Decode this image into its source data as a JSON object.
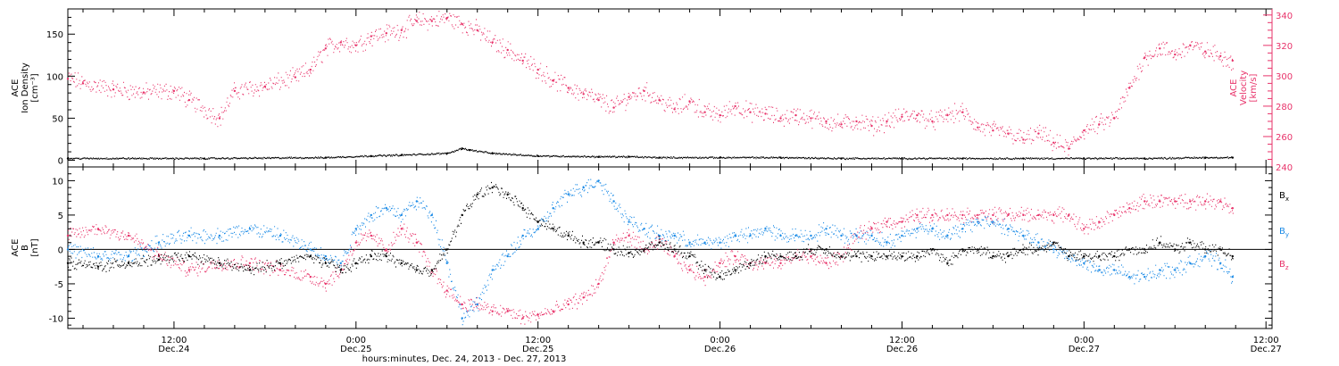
{
  "colors": {
    "axis": "#000000",
    "black": "#000000",
    "red": "#e8336a",
    "blue": "#1a8ae6"
  },
  "xaxis": {
    "title": "hours:minutes, Dec. 24, 2013 - Dec. 27, 2013",
    "range_hours": [
      5,
      84.4
    ],
    "ticks": [
      {
        "h": 12,
        "time": "12:00",
        "date": "Dec.24"
      },
      {
        "h": 24,
        "time": "0:00",
        "date": "Dec.25"
      },
      {
        "h": 36,
        "time": "12:00",
        "date": "Dec.25"
      },
      {
        "h": 48,
        "time": "0:00",
        "date": "Dec.26"
      },
      {
        "h": 60,
        "time": "12:00",
        "date": "Dec.26"
      },
      {
        "h": 72,
        "time": "0:00",
        "date": "Dec.27"
      },
      {
        "h": 84,
        "time": "12:00",
        "date": "Dec.27"
      }
    ]
  },
  "chart_data": [
    {
      "type": "scatter",
      "panel": "top",
      "ylabel": [
        "ACE",
        "Ion Density",
        "[cm⁻³]"
      ],
      "ylabel_right": [
        "ACE",
        "Velocity",
        "[km/s]"
      ],
      "ylim": [
        -8,
        180
      ],
      "yticks": [
        0,
        50,
        100,
        150
      ],
      "ylim_right": [
        240,
        344
      ],
      "yticks_right": [
        240,
        260,
        280,
        300,
        320,
        340
      ],
      "series": [
        {
          "axis": "left",
          "color": "black",
          "x": [
            5,
            14,
            22,
            25,
            27,
            30,
            31,
            31.5,
            33,
            36,
            40,
            42,
            44,
            48,
            52,
            56,
            60,
            64,
            68,
            72,
            76,
            80,
            81.8
          ],
          "y": [
            2,
            2,
            3,
            5,
            6,
            8,
            14,
            12,
            8,
            5,
            4,
            4,
            3,
            3,
            3,
            2,
            2,
            2,
            2,
            2,
            2,
            3,
            3
          ]
        },
        {
          "axis": "right",
          "color": "red",
          "x": [
            5,
            6,
            8,
            10,
            12,
            13,
            15,
            16,
            18,
            20,
            21,
            22,
            23,
            24,
            25,
            26,
            27,
            28,
            29,
            30,
            31,
            32,
            33,
            34,
            35,
            36,
            37,
            38,
            39,
            40,
            41,
            42,
            43,
            44,
            45,
            46,
            47,
            48,
            49,
            50,
            51,
            52,
            53,
            54,
            55,
            56,
            57,
            58,
            59,
            60,
            61,
            62,
            63,
            64,
            65,
            66,
            67,
            68,
            69,
            70,
            71,
            72,
            73,
            74,
            75,
            76,
            77,
            78,
            79,
            80,
            81,
            81.8
          ],
          "y": [
            298,
            295,
            291,
            289,
            290,
            284,
            272,
            290,
            293,
            299,
            304,
            318,
            322,
            320,
            326,
            328,
            330,
            336,
            336,
            338,
            334,
            330,
            322,
            317,
            310,
            304,
            297,
            292,
            288,
            284,
            279,
            286,
            290,
            284,
            278,
            283,
            276,
            274,
            280,
            276,
            275,
            272,
            274,
            272,
            270,
            268,
            270,
            267,
            270,
            273,
            274,
            270,
            274,
            276,
            266,
            264,
            262,
            258,
            262,
            256,
            252,
            264,
            268,
            272,
            292,
            312,
            318,
            314,
            320,
            316,
            313,
            310
          ]
        }
      ]
    },
    {
      "type": "scatter",
      "panel": "bottom",
      "ylabel": [
        "ACE",
        "B",
        "[nT]"
      ],
      "ylim": [
        -11.5,
        12
      ],
      "yticks": [
        -10,
        -5,
        0,
        5,
        10
      ],
      "legend": [
        "Bx",
        "By",
        "Bz"
      ],
      "series": [
        {
          "name": "Bx",
          "color": "black",
          "x": [
            5,
            7,
            9,
            11,
            13,
            15,
            17,
            19,
            21,
            22,
            23,
            24,
            25,
            26,
            27,
            28,
            29,
            30,
            31,
            32,
            33,
            34,
            35,
            36,
            37,
            38,
            39,
            40,
            41,
            42,
            43,
            44,
            45,
            46,
            47,
            48,
            49,
            50,
            51,
            52,
            53,
            54,
            55,
            56,
            57,
            58,
            59,
            60,
            61,
            62,
            63,
            64,
            65,
            66,
            67,
            68,
            69,
            70,
            71,
            72,
            73,
            74,
            75,
            76,
            77,
            78,
            79,
            80,
            81,
            81.8
          ],
          "y": [
            -2,
            -2.5,
            -2,
            -1.5,
            -1,
            -2,
            -3,
            -2,
            -1,
            -2,
            -3,
            -2,
            -1,
            -1,
            -2,
            -3,
            -3,
            0,
            5,
            8,
            9,
            8,
            6,
            4,
            3,
            2,
            1,
            1,
            0,
            -0.5,
            0,
            1,
            0,
            -1,
            -3,
            -4,
            -3,
            -2,
            -1,
            -1,
            -1,
            0,
            0,
            -1,
            -1,
            -1,
            -1,
            -1,
            -1,
            0,
            -2,
            0,
            0,
            -1,
            -1,
            0,
            0,
            1,
            -1,
            -1,
            -1,
            -1,
            0,
            0,
            1,
            0,
            1,
            0,
            0,
            -1
          ]
        },
        {
          "name": "By",
          "color": "blue",
          "x": [
            5,
            7,
            9,
            11,
            13,
            15,
            17,
            19,
            21,
            22,
            23,
            24,
            25,
            26,
            27,
            28,
            29,
            30,
            31,
            32,
            33,
            34,
            35,
            36,
            37,
            38,
            39,
            40,
            41,
            42,
            43,
            44,
            45,
            46,
            47,
            48,
            49,
            50,
            51,
            52,
            53,
            54,
            55,
            56,
            57,
            58,
            59,
            60,
            61,
            62,
            63,
            64,
            65,
            66,
            67,
            68,
            69,
            70,
            71,
            72,
            73,
            74,
            75,
            76,
            77,
            78,
            79,
            80,
            81,
            81.8
          ],
          "y": [
            0,
            -1,
            -1,
            1,
            2,
            2,
            3,
            2,
            0,
            -1,
            -2,
            3,
            5,
            6,
            5,
            7,
            5,
            -2,
            -10,
            -8,
            -3,
            -1,
            2,
            3,
            6,
            8,
            9,
            10,
            7,
            4,
            3,
            2,
            2,
            1,
            1,
            1,
            2,
            2,
            3,
            2,
            2,
            2,
            3,
            2,
            2,
            2,
            1,
            2,
            3,
            3,
            2,
            3,
            4,
            4,
            3,
            2,
            1,
            0,
            -1,
            -2,
            -3,
            -3,
            -4,
            -4,
            -3,
            -3,
            -2,
            -1,
            -2,
            -4
          ]
        },
        {
          "name": "Bz",
          "color": "red",
          "x": [
            5,
            7,
            9,
            11,
            13,
            15,
            17,
            19,
            21,
            22,
            23,
            24,
            25,
            26,
            27,
            28,
            29,
            30,
            31,
            32,
            33,
            34,
            35,
            36,
            37,
            38,
            39,
            40,
            41,
            42,
            43,
            44,
            45,
            46,
            47,
            48,
            49,
            50,
            51,
            52,
            53,
            54,
            55,
            56,
            57,
            58,
            59,
            60,
            61,
            62,
            63,
            64,
            65,
            66,
            67,
            68,
            69,
            70,
            71,
            72,
            73,
            74,
            75,
            76,
            77,
            78,
            79,
            80,
            81,
            81.8
          ],
          "y": [
            2,
            3,
            2,
            -1,
            -3,
            -2,
            -2,
            -3,
            -4,
            -5,
            -3,
            1,
            2,
            0,
            3,
            1,
            -3,
            -6,
            -8,
            -8,
            -9,
            -9,
            -10,
            -9.5,
            -9,
            -8,
            -7,
            -5,
            1,
            2,
            0,
            1,
            -1,
            -3,
            -4,
            -2,
            -1,
            -2,
            -2,
            -2,
            -1,
            -1,
            -2,
            -1,
            2,
            3,
            4,
            4,
            5,
            5,
            5,
            5,
            5,
            5,
            5,
            5,
            5,
            5,
            5,
            3,
            4,
            5,
            6,
            7,
            7,
            7,
            7,
            7,
            7,
            6
          ]
        }
      ]
    }
  ]
}
